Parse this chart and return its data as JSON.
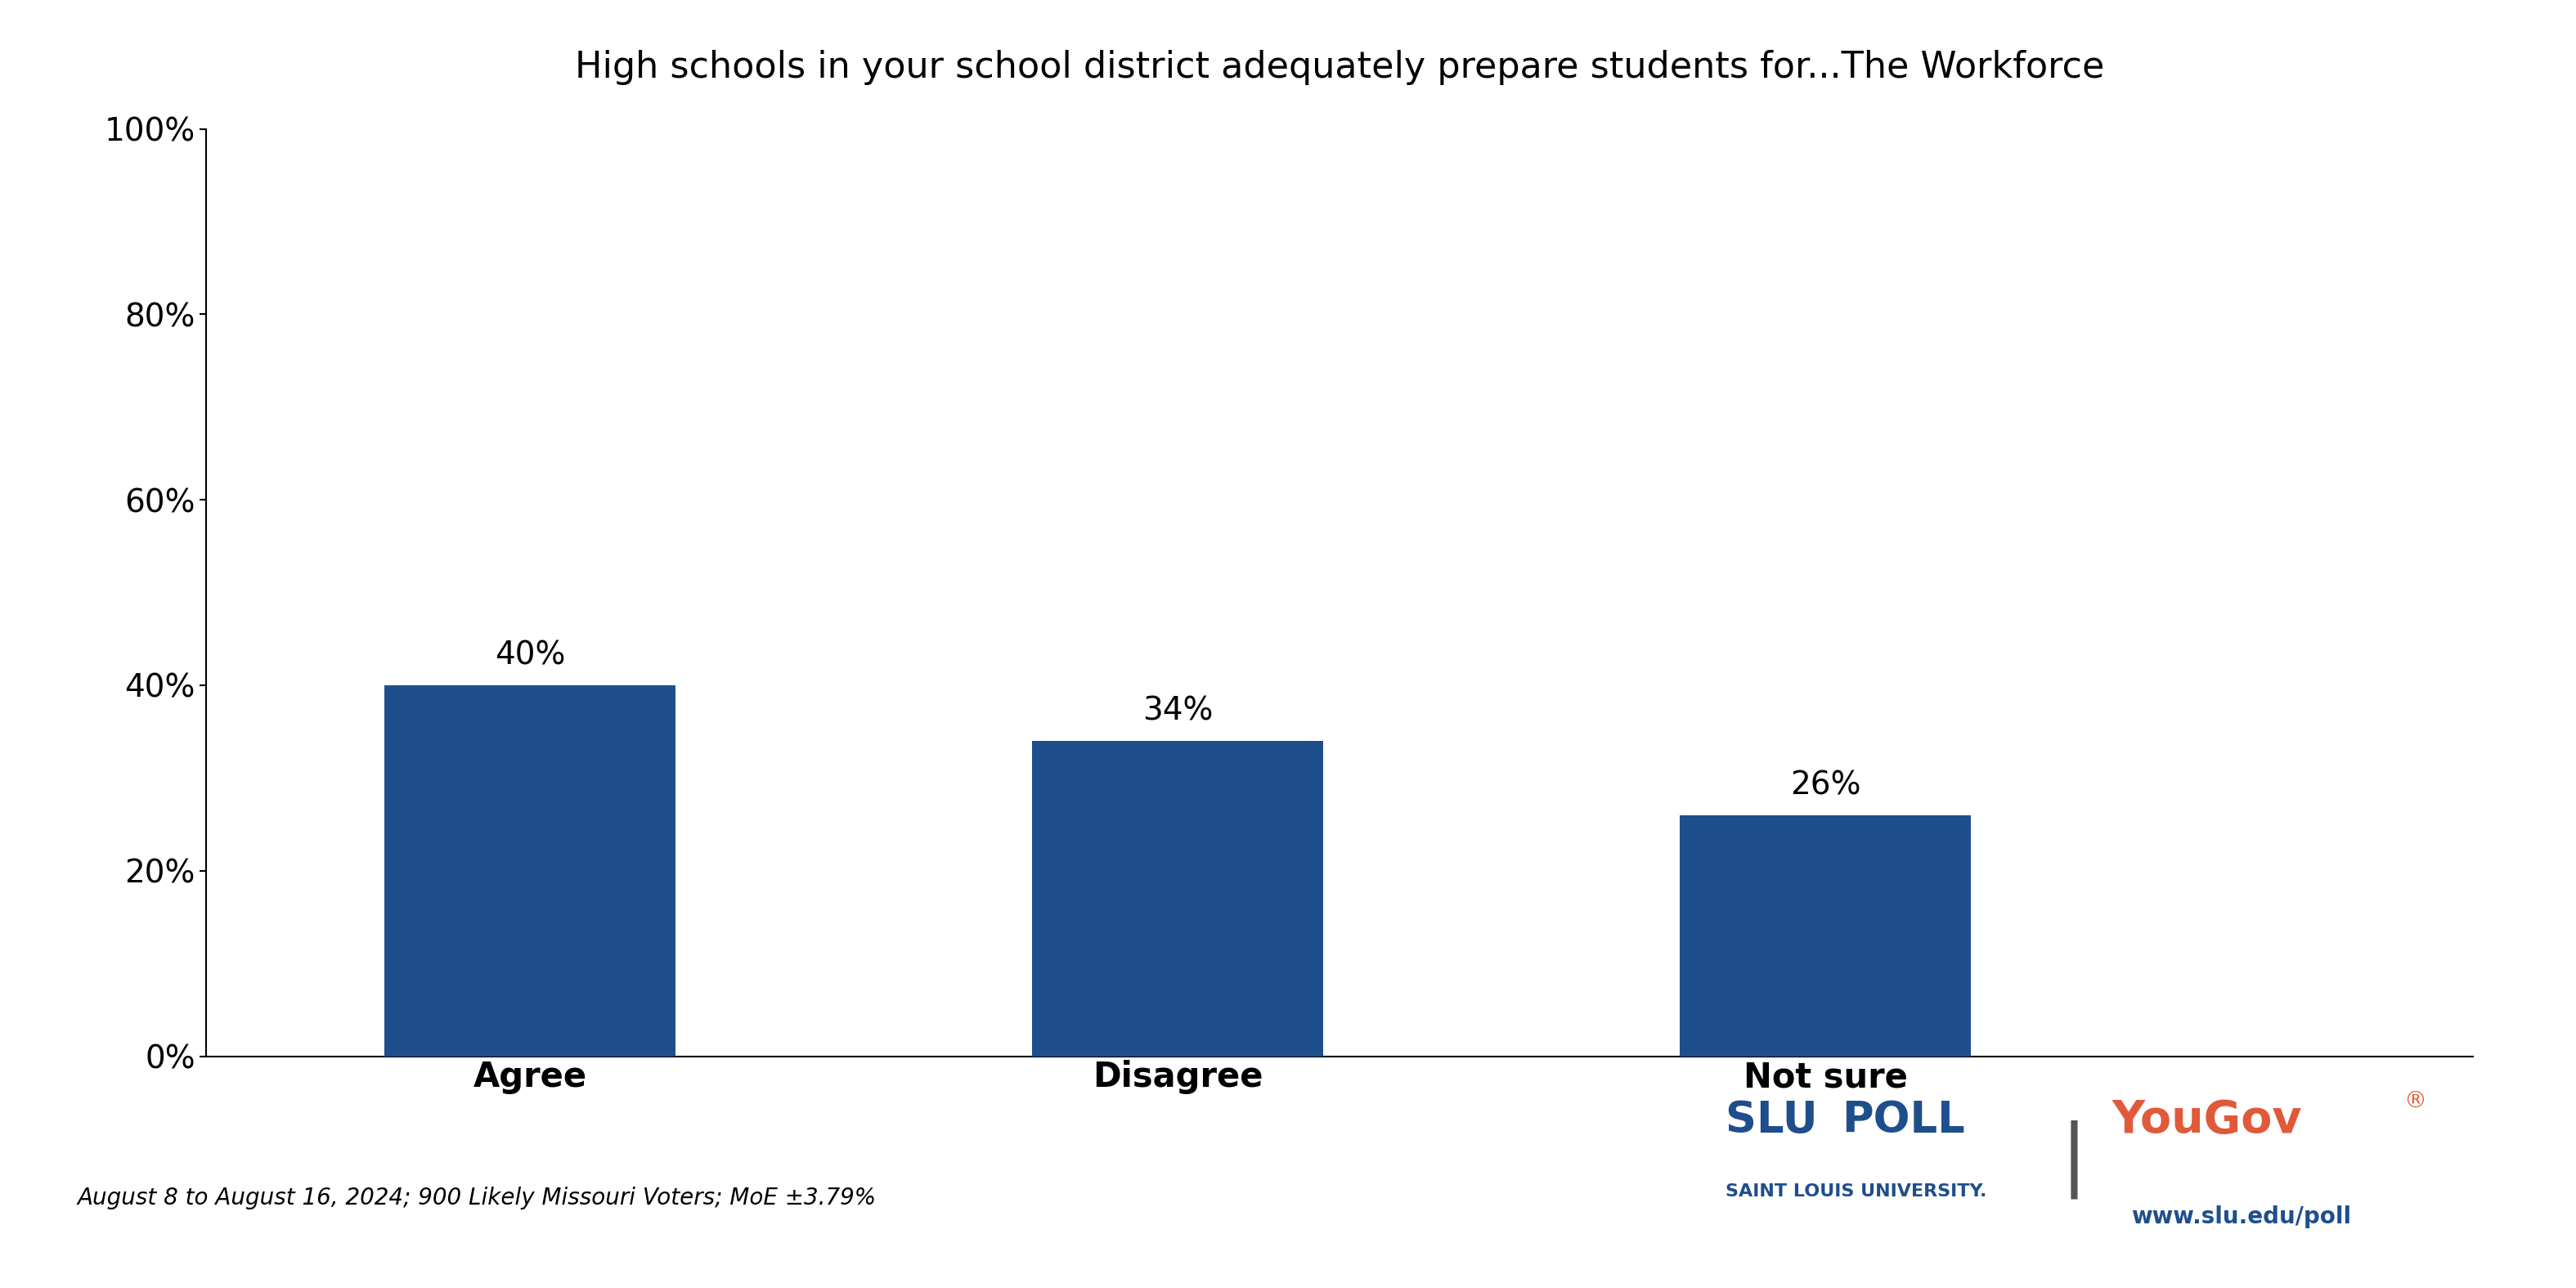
{
  "title": "High schools in your school district adequately prepare students for...The Workforce",
  "categories": [
    "Agree",
    "Disagree",
    "Not sure"
  ],
  "values": [
    40,
    34,
    26
  ],
  "bar_color": "#1F4E8C",
  "bar_positions": [
    1,
    3,
    5
  ],
  "bar_width": 0.9,
  "xlim": [
    0,
    7
  ],
  "ylim": [
    0,
    100
  ],
  "yticks": [
    0,
    20,
    40,
    60,
    80,
    100
  ],
  "ytick_labels": [
    "0%",
    "20%",
    "40%",
    "60%",
    "80%",
    "100%"
  ],
  "value_labels": [
    "40%",
    "34%",
    "26%"
  ],
  "background_color": "#FFFFFF",
  "title_fontsize": 32,
  "tick_fontsize": 28,
  "label_fontsize": 30,
  "value_fontsize": 28,
  "footnote": "August 8 to August 16, 2024; 900 Likely Missouri Voters; MoE ±3.79%",
  "footnote_fontsize": 20,
  "slu_color": "#1F4E8C",
  "yougov_color": "#E05A3A",
  "website_color": "#1F4E8C"
}
